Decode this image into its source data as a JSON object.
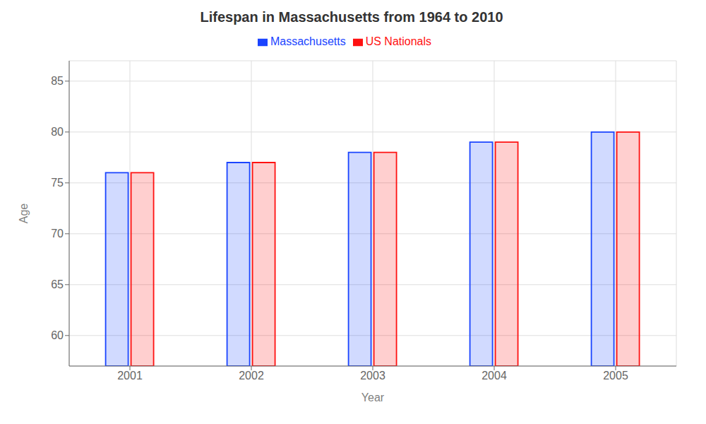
{
  "chart_data": {
    "type": "bar",
    "title": "Lifespan in Massachusetts from 1964 to 2010",
    "x_label": "Year",
    "y_label": "Age",
    "categories": [
      2001,
      2002,
      2003,
      2004,
      2005
    ],
    "series": [
      {
        "name": "Massachusetts",
        "color": "#1a44ff",
        "values": [
          76.0,
          77.0,
          78.0,
          79.0,
          80.0
        ]
      },
      {
        "name": "US Nationals",
        "color": "#ff1111",
        "values": [
          76.0,
          77.0,
          78.0,
          79.0,
          80.0
        ]
      }
    ],
    "ylim": [
      57,
      87
    ],
    "yticks": [
      60,
      65,
      70,
      75,
      80,
      85
    ],
    "grid": true,
    "legend": "top"
  }
}
